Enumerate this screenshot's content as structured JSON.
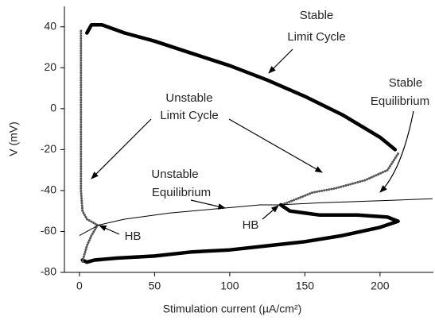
{
  "chart_data": {
    "type": "line",
    "xlabel": "Stimulation current (µA/cm²)",
    "ylabel": "V (mV)",
    "xlim": [
      -10,
      235
    ],
    "ylim": [
      -80,
      50
    ],
    "xticks": [
      0,
      50,
      100,
      150,
      200
    ],
    "yticks": [
      -80,
      -60,
      -40,
      -20,
      0,
      20,
      40
    ],
    "series": [
      {
        "style": "thick",
        "color": "#000000",
        "x": [
          5,
          8,
          15,
          30,
          50,
          75,
          100,
          125,
          150,
          175,
          200,
          210
        ],
        "values": [
          37,
          41,
          41,
          37,
          33,
          27,
          21,
          14,
          6,
          -3,
          -14,
          -20
        ]
      },
      {
        "style": "circles",
        "color": "#555555",
        "x": [
          212,
          205,
          190,
          170,
          155,
          145,
          138,
          134
        ],
        "values": [
          -22,
          -30,
          -35,
          -39,
          -41,
          -44,
          -46,
          -47
        ]
      },
      {
        "style": "thick",
        "color": "#000000",
        "x": [
          134,
          140,
          160,
          185,
          205,
          212
        ],
        "values": [
          -47,
          -50,
          -52,
          -52,
          -53,
          -55
        ]
      },
      {
        "style": "thick",
        "color": "#000000",
        "x": [
          212,
          200,
          175,
          150,
          125,
          100,
          75,
          50,
          25,
          10,
          5,
          2
        ],
        "values": [
          -55,
          -58,
          -62,
          -65,
          -67,
          -69,
          -70,
          -72,
          -73,
          -74,
          -75,
          -74
        ]
      },
      {
        "style": "circles",
        "color": "#555555",
        "x": [
          1,
          1,
          1,
          1,
          1,
          2,
          5,
          10,
          12
        ],
        "values": [
          38,
          20,
          0,
          -20,
          -40,
          -50,
          -54,
          -56,
          -57
        ]
      },
      {
        "style": "circles",
        "color": "#555555",
        "x": [
          12,
          8,
          5,
          3,
          2
        ],
        "values": [
          -57,
          -62,
          -67,
          -72,
          -75
        ]
      },
      {
        "style": "thin",
        "color": "#000000",
        "x": [
          0,
          10,
          12,
          30,
          60,
          90,
          120,
          133
        ],
        "values": [
          -62,
          -58,
          -57,
          -54,
          -51,
          -49,
          -47,
          -47
        ]
      },
      {
        "style": "thin",
        "color": "#000000",
        "x": [
          133,
          160,
          200,
          235
        ],
        "values": [
          -47,
          -46,
          -45,
          -44
        ]
      }
    ],
    "annotations": [
      "Stable",
      "Limit Cycle",
      "Unstable",
      "Limit Cycle",
      "Unstable",
      "Equilibrium",
      "Stable",
      "Equilibrium",
      "HB",
      "HB"
    ]
  }
}
